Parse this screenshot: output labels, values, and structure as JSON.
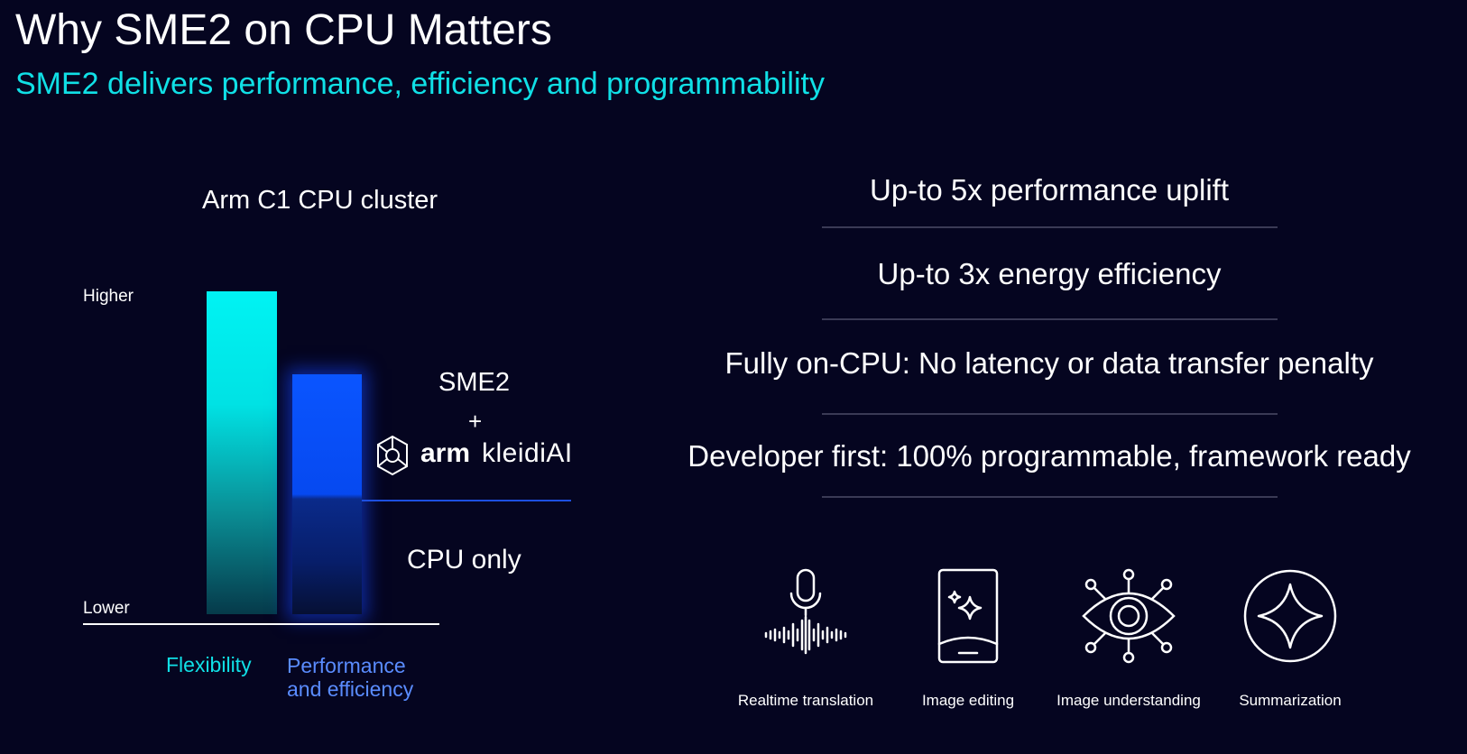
{
  "title": "Why SME2 on CPU Matters",
  "subtitle": "SME2 delivers performance, efficiency and programmability",
  "diagram": {
    "title": "Arm C1 CPU cluster",
    "axis_high": "Higher",
    "axis_low": "Lower",
    "bar_flexibility_label": "Flexibility",
    "bar_performance_label_line1": "Performance",
    "bar_performance_label_line2": "and efficiency",
    "sme2_label": "SME2",
    "plus": "+",
    "brand_arm": "arm",
    "brand_kleidi": "kleidiAI",
    "cpu_only_label": "CPU only",
    "colors": {
      "flexibility": "#00f0f0",
      "performance": "#0a55ff",
      "subtitle": "#10e0e6"
    }
  },
  "claims": [
    "Up-to 5x performance uplift",
    "Up-to 3x energy efficiency",
    "Fully on-CPU: No latency or data transfer penalty",
    "Developer first: 100% programmable, framework ready"
  ],
  "use_cases": [
    {
      "label": "Realtime translation",
      "icon": "microphone-waveform-icon"
    },
    {
      "label": "Image editing",
      "icon": "phone-sparkle-icon"
    },
    {
      "label": "Image understanding",
      "icon": "eye-network-icon"
    },
    {
      "label": "Summarization",
      "icon": "star-circle-icon"
    }
  ]
}
